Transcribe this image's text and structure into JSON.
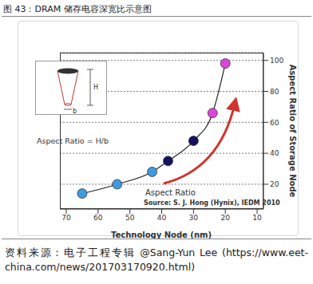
{
  "chart_data": {
    "type": "line",
    "title": "图 43：DRAM 储存电容深宽比示意图",
    "x": [
      65,
      54,
      43,
      38,
      30,
      24,
      20
    ],
    "values": [
      14,
      20,
      28,
      35,
      48,
      66,
      98
    ],
    "color": "#222222",
    "colors": [
      "#3d9be0",
      "#3d9be0",
      "#3d9be0",
      "#12125e",
      "#12125e",
      "#dd44dd",
      "#dd44dd"
    ],
    "marker": "circle",
    "xlim": [
      72,
      8
    ],
    "xticks": [
      70,
      60,
      50,
      40,
      30,
      20,
      10
    ],
    "ylim": [
      4,
      105
    ],
    "yticks": [
      20,
      40,
      60,
      80,
      100
    ],
    "grid": true,
    "x_label": "Technology Node (nm)",
    "y_label": "Aspect Ratio of Storage Node",
    "annotations": [
      "Aspect Ratio = H/b",
      "H",
      "b",
      "Aspect Ratio"
    ],
    "source": "Source: S. J. Hong (Hynix), IEDM 2010",
    "footer": "资料来源：电子工程专辑 @Sang-Yun Lee (https://www.eet-china.com/news/201703170920.html)"
  }
}
